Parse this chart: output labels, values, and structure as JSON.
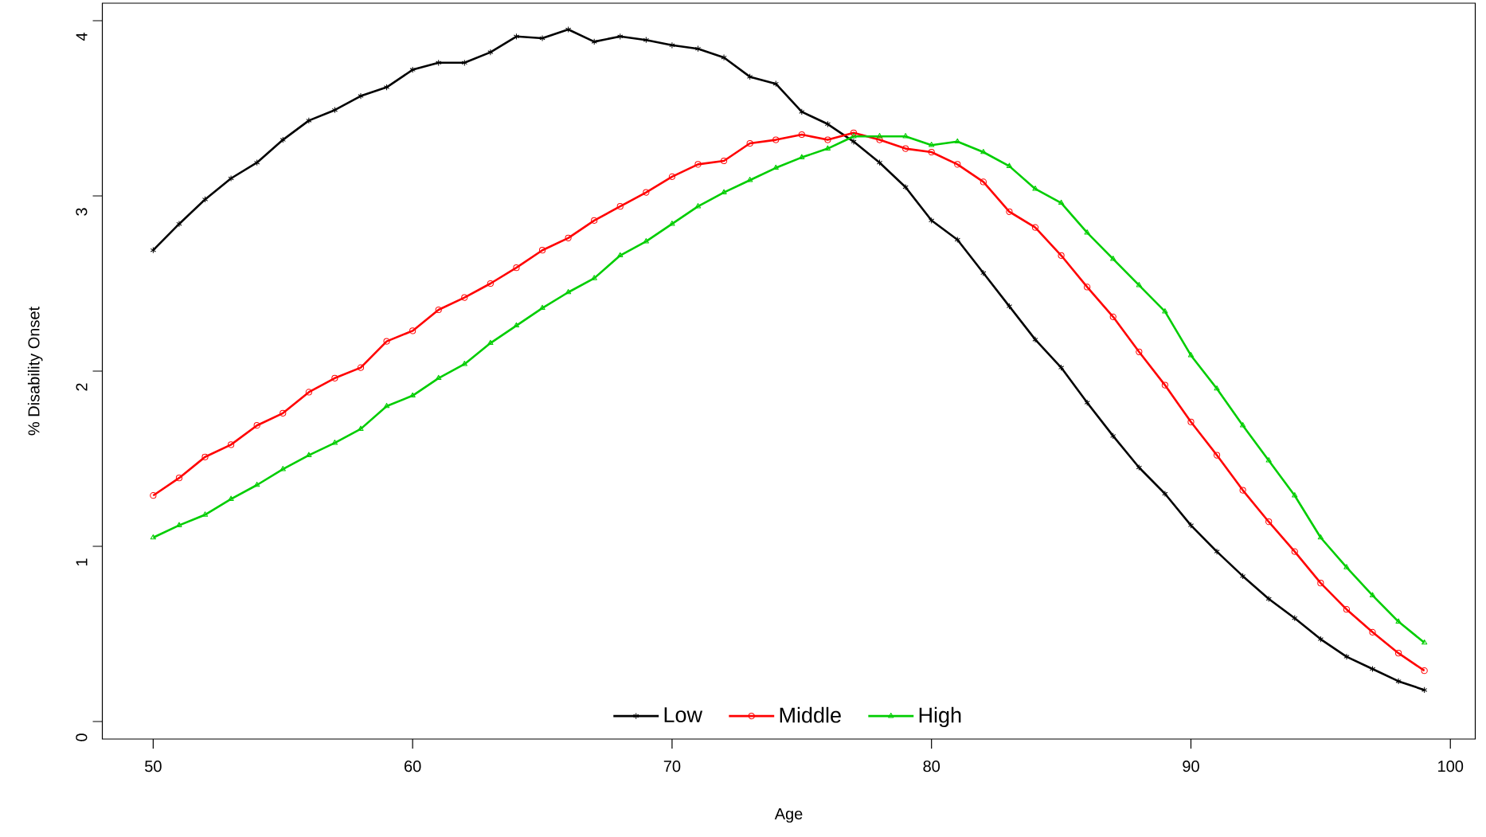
{
  "chart_data": {
    "type": "line",
    "xlabel": "Age",
    "ylabel": "% Disability Onset",
    "x": [
      50,
      51,
      52,
      53,
      54,
      55,
      56,
      57,
      58,
      59,
      60,
      61,
      62,
      63,
      64,
      65,
      66,
      67,
      68,
      69,
      70,
      71,
      72,
      73,
      74,
      75,
      76,
      77,
      78,
      79,
      80,
      81,
      82,
      83,
      84,
      85,
      86,
      87,
      88,
      89,
      90,
      91,
      92,
      93,
      94,
      95,
      96,
      97,
      98,
      99
    ],
    "series": [
      {
        "name": "Low",
        "color": "#000000",
        "marker": "cross",
        "values": [
          2.69,
          2.84,
          2.98,
          3.1,
          3.19,
          3.32,
          3.43,
          3.49,
          3.57,
          3.62,
          3.72,
          3.76,
          3.76,
          3.82,
          3.91,
          3.9,
          3.95,
          3.88,
          3.91,
          3.89,
          3.86,
          3.84,
          3.79,
          3.68,
          3.64,
          3.48,
          3.41,
          3.31,
          3.19,
          3.05,
          2.86,
          2.75,
          2.56,
          2.37,
          2.18,
          2.02,
          1.82,
          1.63,
          1.45,
          1.3,
          1.12,
          0.97,
          0.83,
          0.7,
          0.59,
          0.47,
          0.37,
          0.3,
          0.23,
          0.18
        ]
      },
      {
        "name": "Middle",
        "color": "#ff0000",
        "marker": "circle",
        "values": [
          1.29,
          1.39,
          1.51,
          1.58,
          1.69,
          1.76,
          1.88,
          1.96,
          2.02,
          2.17,
          2.23,
          2.35,
          2.42,
          2.5,
          2.59,
          2.69,
          2.76,
          2.86,
          2.94,
          3.02,
          3.11,
          3.18,
          3.2,
          3.3,
          3.32,
          3.35,
          3.32,
          3.36,
          3.32,
          3.27,
          3.25,
          3.18,
          3.08,
          2.91,
          2.82,
          2.66,
          2.48,
          2.31,
          2.11,
          1.92,
          1.71,
          1.52,
          1.32,
          1.14,
          0.97,
          0.79,
          0.64,
          0.51,
          0.39,
          0.29
        ]
      },
      {
        "name": "High",
        "color": "#00cd00",
        "marker": "triangle",
        "values": [
          1.05,
          1.12,
          1.18,
          1.27,
          1.35,
          1.44,
          1.52,
          1.59,
          1.67,
          1.8,
          1.86,
          1.96,
          2.04,
          2.16,
          2.26,
          2.36,
          2.45,
          2.53,
          2.66,
          2.74,
          2.84,
          2.94,
          3.02,
          3.09,
          3.16,
          3.22,
          3.27,
          3.34,
          3.34,
          3.34,
          3.29,
          3.31,
          3.25,
          3.17,
          3.04,
          2.96,
          2.79,
          2.64,
          2.49,
          2.34,
          2.09,
          1.9,
          1.69,
          1.49,
          1.29,
          1.05,
          0.88,
          0.72,
          0.57,
          0.45
        ]
      }
    ],
    "xlim": [
      48.04,
      100.96
    ],
    "ylim": [
      -0.1,
      4.1
    ],
    "xticks": [
      50,
      60,
      70,
      80,
      90,
      100
    ],
    "yticks": [
      0,
      1,
      2,
      3,
      4
    ],
    "legend": "bottom",
    "line_style": "solid",
    "grid": false
  }
}
